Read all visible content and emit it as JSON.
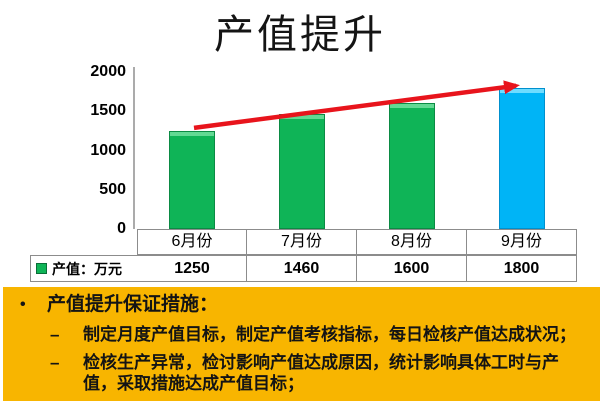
{
  "slide": {
    "title": "产值提升"
  },
  "chart_data": {
    "type": "bar",
    "title": "产值提升",
    "categories": [
      "6月份",
      "7月份",
      "8月份",
      "9月份"
    ],
    "series": [
      {
        "name": "产值：万元",
        "values": [
          1250,
          1460,
          1600,
          1800
        ]
      }
    ],
    "xlabel": "",
    "ylabel": "",
    "ylim": [
      0,
      2000
    ],
    "yticks": [
      0,
      500,
      1000,
      1500,
      2000
    ],
    "grid": false,
    "legend_position": "table-left",
    "bar_styles": [
      {
        "fill": "#0FB457",
        "border": "#0B8B44",
        "bevel": "#62D993"
      },
      {
        "fill": "#0FB457",
        "border": "#0B8B44",
        "bevel": "#62D993"
      },
      {
        "fill": "#0FB457",
        "border": "#0B8B44",
        "bevel": "#62D993"
      },
      {
        "fill": "#00B4F6",
        "border": "#0090CE",
        "bevel": "#6FDCFF"
      }
    ],
    "trend_arrow": {
      "color": "#E8141C",
      "from_category": "6月份",
      "to_category": "9月份"
    }
  },
  "table": {
    "legend_label": "产值：万元",
    "legend_swatch_color": "#0FB457",
    "columns": [
      "6月份",
      "7月份",
      "8月份",
      "9月份"
    ],
    "values": [
      "1250",
      "1460",
      "1600",
      "1800"
    ]
  },
  "notes": {
    "background": "#F8B500",
    "bullet_glyph": "•",
    "dash_glyph": "–",
    "heading": "产值提升保证措施：",
    "items": [
      "制定月度产值目标，制定产值考核指标，每日检核产值达成状况；",
      "检核生产异常，检讨影响产值达成原因，统计影响具体工时与产值，采取措施达成产值目标；"
    ]
  }
}
